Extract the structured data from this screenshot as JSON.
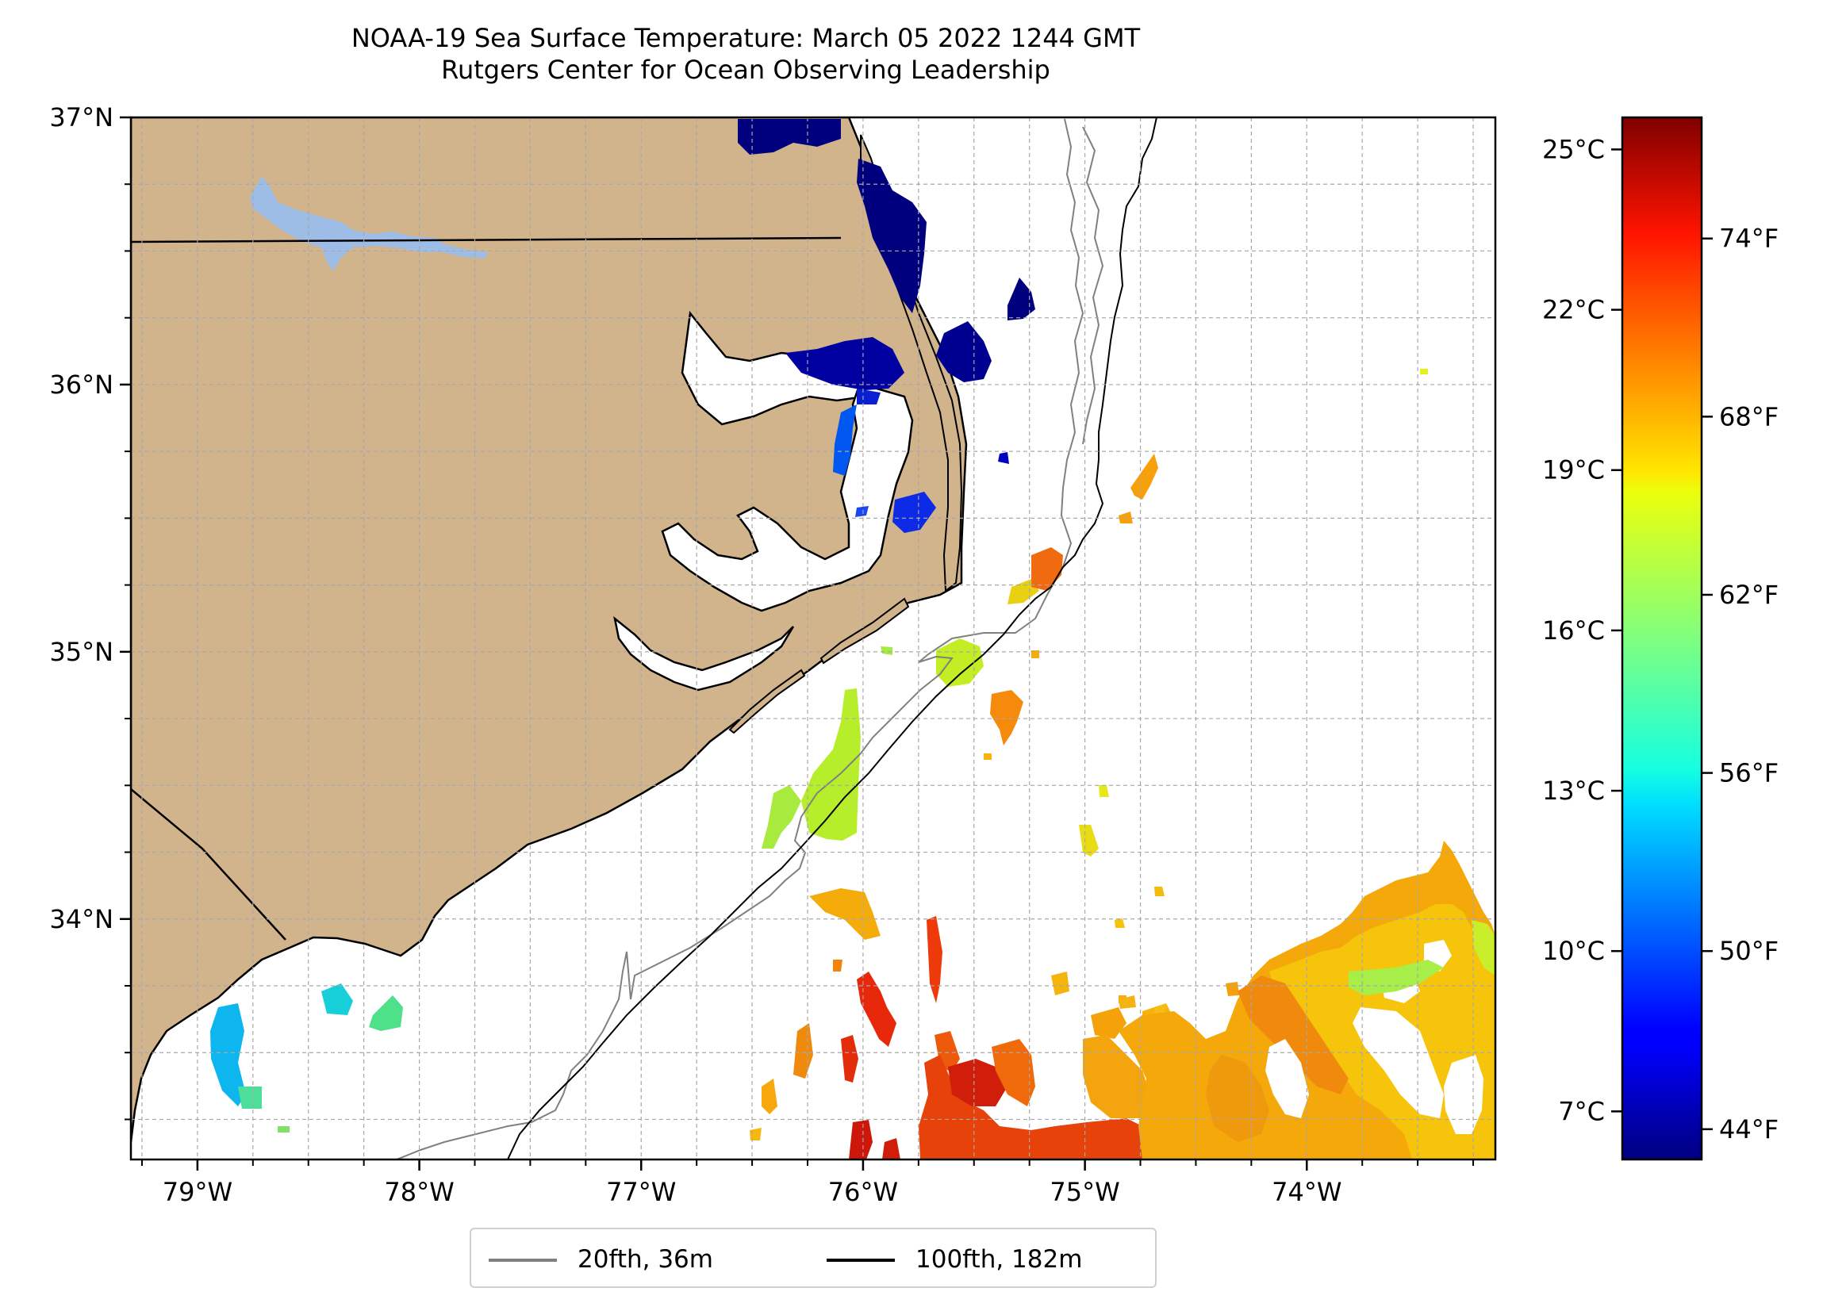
{
  "title": {
    "line1": "NOAA-19 Sea Surface Temperature: March 05 2022 1244 GMT",
    "line2": "Rutgers Center for Ocean Observing Leadership"
  },
  "map": {
    "lon_range": [
      -79.3,
      -73.15
    ],
    "lat_range": [
      33.1,
      37.0
    ],
    "lon_ticks": [
      {
        "value": -79,
        "label": "79°W"
      },
      {
        "value": -78,
        "label": "78°W"
      },
      {
        "value": -77,
        "label": "77°W"
      },
      {
        "value": -76,
        "label": "76°W"
      },
      {
        "value": -75,
        "label": "75°W"
      },
      {
        "value": -74,
        "label": "74°W"
      }
    ],
    "lat_ticks": [
      {
        "value": 37,
        "label": "37°N"
      },
      {
        "value": 36,
        "label": "36°N"
      },
      {
        "value": 35,
        "label": "35°N"
      },
      {
        "value": 34,
        "label": "34°N"
      }
    ],
    "gridlines": true,
    "colors": {
      "land": "#d2b48c",
      "ocean": "#ffffff",
      "lake": "#9dbce6",
      "isobath_20": "#808080",
      "isobath_100": "#000000"
    }
  },
  "legend": {
    "placement": "bottom-center",
    "items": [
      {
        "label": "20fth, 36m",
        "color": "#808080"
      },
      {
        "label": "100fth, 182m",
        "color": "#000000"
      }
    ]
  },
  "colorbar": {
    "colormap": "jet",
    "celsius_range": [
      6.1,
      25.6
    ],
    "celsius_ticks": [
      {
        "value": 7,
        "label": "7°C"
      },
      {
        "value": 10,
        "label": "10°C"
      },
      {
        "value": 13,
        "label": "13°C"
      },
      {
        "value": 16,
        "label": "16°C"
      },
      {
        "value": 19,
        "label": "19°C"
      },
      {
        "value": 22,
        "label": "22°C"
      },
      {
        "value": 25,
        "label": "25°C"
      }
    ],
    "fahrenheit_ticks": [
      {
        "value": 44,
        "label": "44°F"
      },
      {
        "value": 50,
        "label": "50°F"
      },
      {
        "value": 56,
        "label": "56°F"
      },
      {
        "value": 62,
        "label": "62°F"
      },
      {
        "value": 68,
        "label": "68°F"
      },
      {
        "value": 74,
        "label": "74°F"
      }
    ]
  }
}
